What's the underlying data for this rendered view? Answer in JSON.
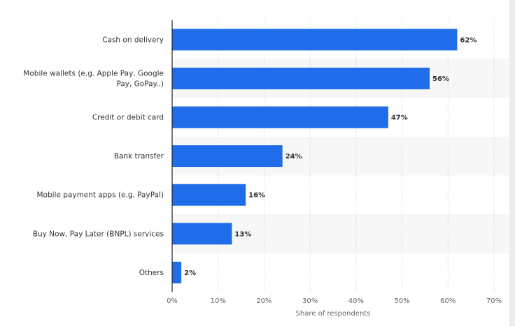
{
  "chart_data": {
    "type": "bar",
    "orientation": "horizontal",
    "categories": [
      [
        "Cash on delivery"
      ],
      [
        "Mobile wallets (e.g. Apple Pay, Google",
        "Pay, GoPay..)"
      ],
      [
        "Credit or debit card"
      ],
      [
        "Bank transfer"
      ],
      [
        "Mobile payment apps (e.g. PayPal)"
      ],
      [
        "Buy Now, Pay Later (BNPL) services"
      ],
      [
        "Others"
      ]
    ],
    "values": [
      62,
      56,
      47,
      24,
      16,
      13,
      2
    ],
    "value_labels": [
      "62%",
      "56%",
      "47%",
      "24%",
      "16%",
      "13%",
      "2%"
    ],
    "xlabel": "Share of respondents",
    "xlim": [
      0,
      70
    ],
    "xticks": [
      0,
      10,
      20,
      30,
      40,
      50,
      60,
      70
    ],
    "xtick_labels": [
      "0%",
      "10%",
      "20%",
      "30%",
      "40%",
      "50%",
      "60%",
      "70%"
    ],
    "grid": "vertical dotted",
    "bar_color": "#1f6de8",
    "band_color": "#f7f7f7"
  }
}
